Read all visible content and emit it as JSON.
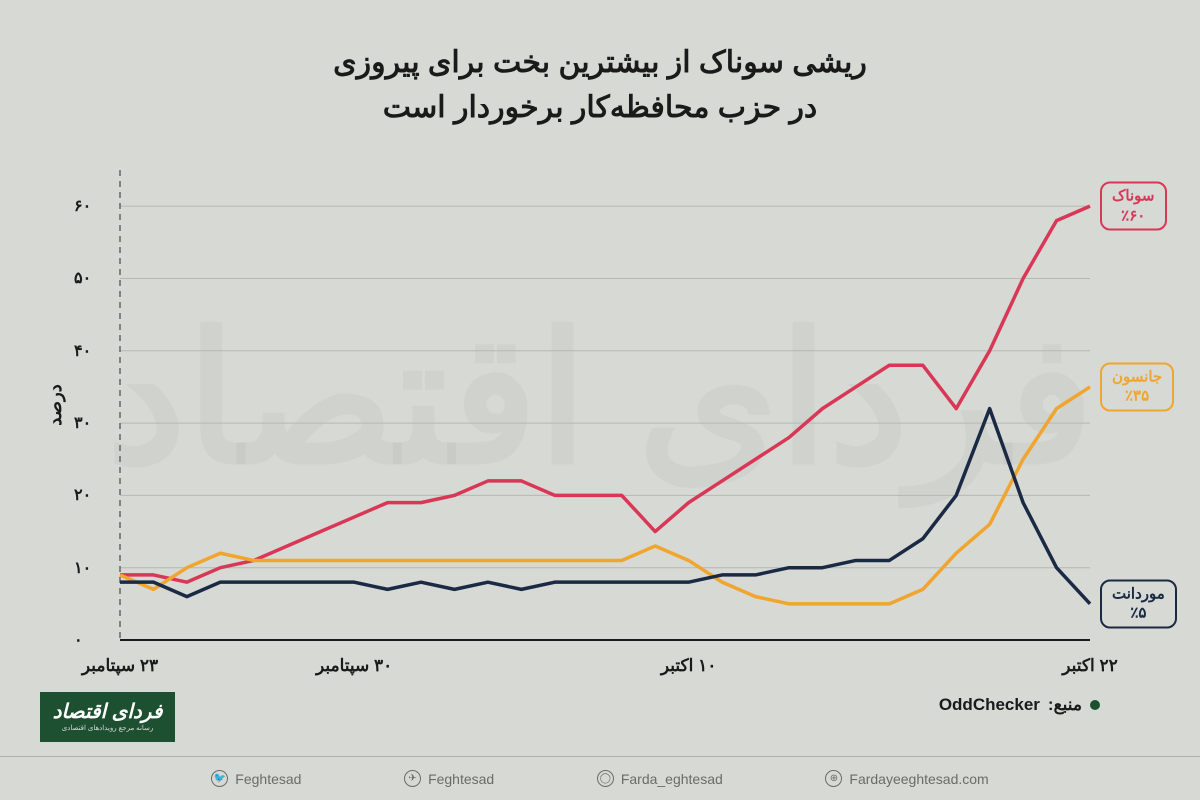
{
  "title_line1": "ریشی سوناک از بیشترین بخت برای پیروزی",
  "title_line2": "در حزب محافظه‌کار برخوردار است",
  "watermark": "فردای اقتصاد",
  "chart": {
    "type": "line",
    "background_color": "#d7d9d4",
    "grid_color": "#b6b8b3",
    "axis_color": "#1a1a1a",
    "ylabel": "درصد",
    "ylim": [
      0,
      65
    ],
    "yticks": [
      0,
      10,
      20,
      30,
      40,
      50,
      60
    ],
    "ytick_labels": [
      "۰",
      "۱۰",
      "۲۰",
      "۳۰",
      "۴۰",
      "۵۰",
      "۶۰"
    ],
    "x_count": 30,
    "x_dashed_at": 0,
    "xticks": [
      {
        "pos": 0,
        "label": "۲۳ سپتامبر"
      },
      {
        "pos": 7,
        "label": "۳۰ سپتامبر"
      },
      {
        "pos": 17,
        "label": "۱۰ اکتبر"
      },
      {
        "pos": 29,
        "label": "۲۲ اکتبر"
      }
    ],
    "series": [
      {
        "key": "sunak",
        "color": "#d93756",
        "line_width": 3.5,
        "label_name": "سوناک",
        "label_value": "٪۶۰",
        "values": [
          9,
          9,
          8,
          10,
          11,
          13,
          15,
          17,
          19,
          19,
          20,
          22,
          22,
          20,
          20,
          20,
          15,
          19,
          22,
          25,
          28,
          32,
          35,
          38,
          38,
          32,
          40,
          50,
          58,
          60
        ]
      },
      {
        "key": "johnson",
        "color": "#f0a52e",
        "line_width": 3.5,
        "label_name": "جانسون",
        "label_value": "٪۳۵",
        "values": [
          9,
          7,
          10,
          12,
          11,
          11,
          11,
          11,
          11,
          11,
          11,
          11,
          11,
          11,
          11,
          11,
          13,
          11,
          8,
          6,
          5,
          5,
          5,
          5,
          7,
          12,
          16,
          25,
          32,
          35
        ]
      },
      {
        "key": "mordaunt",
        "color": "#1b2a44",
        "line_width": 3.5,
        "label_name": "موردانت",
        "label_value": "٪۵",
        "values": [
          8,
          8,
          6,
          8,
          8,
          8,
          8,
          8,
          7,
          8,
          7,
          8,
          7,
          8,
          8,
          8,
          8,
          8,
          9,
          9,
          10,
          10,
          11,
          11,
          14,
          20,
          32,
          19,
          10,
          5
        ]
      }
    ]
  },
  "source_prefix": "منبع:",
  "source_name": "OddChecker",
  "logo_text": "فردای اقتصاد",
  "logo_sub": "رسانه مرجع رویدادهای اقتصادی",
  "socials": [
    {
      "icon": "🐦",
      "handle": "Feghtesad"
    },
    {
      "icon": "✈",
      "handle": "Feghtesad"
    },
    {
      "icon": "◯",
      "handle": "Farda_eghtesad"
    },
    {
      "icon": "⊕",
      "handle": "Fardayeeghtesad.com"
    }
  ]
}
